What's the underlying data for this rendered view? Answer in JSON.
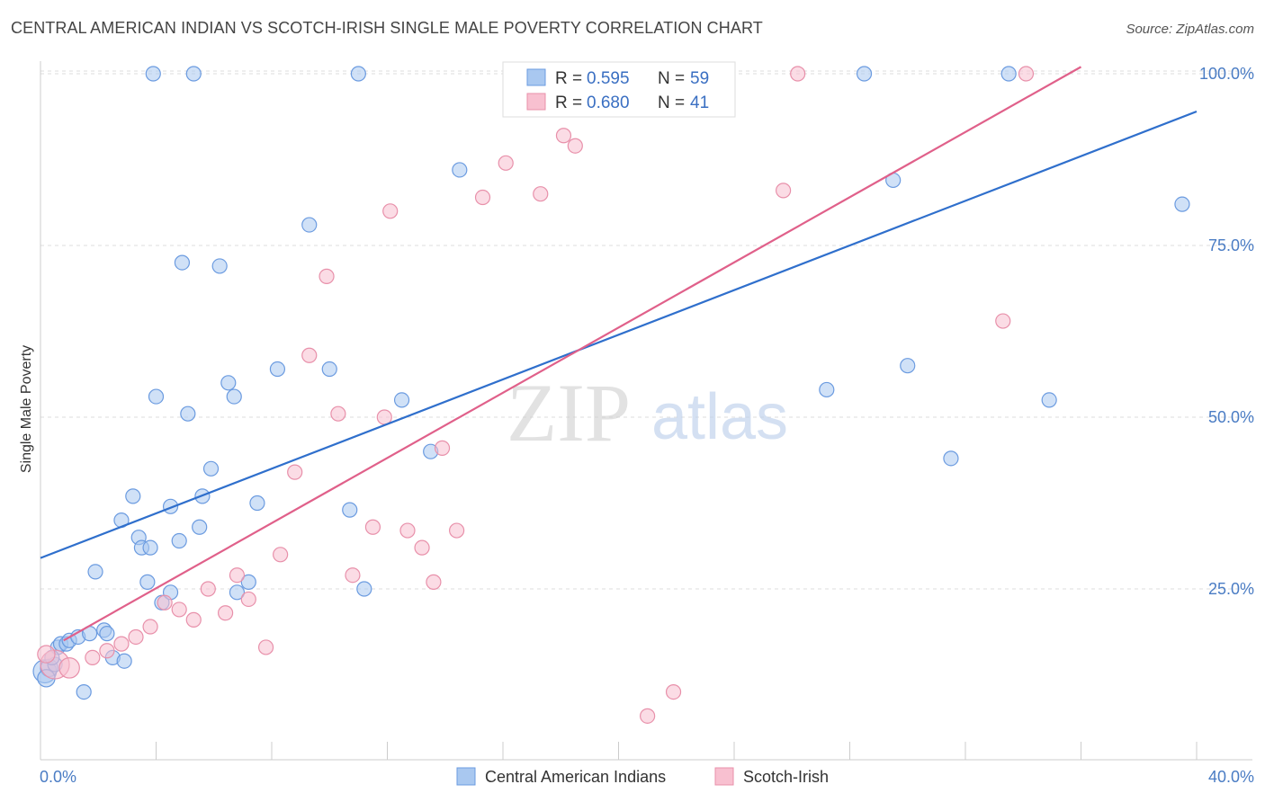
{
  "title": "CENTRAL AMERICAN INDIAN VS SCOTCH-IRISH SINGLE MALE POVERTY CORRELATION CHART",
  "source": "Source: ZipAtlas.com",
  "watermark": {
    "zip": "ZIP",
    "atlas": "atlas"
  },
  "chart_data": {
    "type": "scatter",
    "ylabel": "Single Male Poverty",
    "xlim": [
      0,
      40
    ],
    "ylim": [
      0,
      105
    ],
    "x_tick_labels": {
      "min": "0.0%",
      "max": "40.0%"
    },
    "y_ticks": [
      {
        "value": 25,
        "label": "25.0%"
      },
      {
        "value": 50,
        "label": "50.0%"
      },
      {
        "value": 75,
        "label": "75.0%"
      },
      {
        "value": 100,
        "label": "100.0%"
      }
    ],
    "grid": true,
    "legend": {
      "position": "top-center",
      "entries": [
        {
          "r_label": "R = ",
          "r_value": "0.595",
          "n_label": "N = ",
          "n_value": "59"
        },
        {
          "r_label": "R = ",
          "r_value": "0.680",
          "n_label": "N = ",
          "n_value": "41"
        }
      ]
    },
    "series": [
      {
        "name": "Central American Indians",
        "color": "#a9c8f0",
        "stroke": "#6b9be0",
        "line_color": "#2f6fcc",
        "trend": {
          "x0": 0,
          "y0": 29.5,
          "x1": 40,
          "y1": 94.5
        },
        "points": [
          [
            0.15,
            13.0,
            16
          ],
          [
            0.3,
            13.5,
            12
          ],
          [
            0.5,
            14.0,
            10
          ],
          [
            0.6,
            16.5,
            10
          ],
          [
            0.7,
            17.0,
            10
          ],
          [
            0.9,
            17.0,
            10
          ],
          [
            1.0,
            17.5,
            10
          ],
          [
            1.3,
            18.0,
            10
          ],
          [
            1.7,
            18.5,
            10
          ],
          [
            2.2,
            19.0,
            10
          ],
          [
            2.3,
            18.5,
            10
          ],
          [
            1.5,
            10.0,
            10
          ],
          [
            1.9,
            27.5,
            10
          ],
          [
            2.5,
            15.0,
            10
          ],
          [
            2.9,
            14.5,
            10
          ],
          [
            2.8,
            35.0,
            10
          ],
          [
            3.2,
            38.5,
            10
          ],
          [
            3.4,
            32.5,
            10
          ],
          [
            3.5,
            31.0,
            10
          ],
          [
            3.7,
            26.0,
            10
          ],
          [
            3.8,
            31.0,
            10
          ],
          [
            4.2,
            23.0,
            10
          ],
          [
            4.5,
            24.5,
            10
          ],
          [
            4.5,
            37.0,
            10
          ],
          [
            4.8,
            32.0,
            10
          ],
          [
            4.0,
            53.0,
            10
          ],
          [
            5.1,
            50.5,
            10
          ],
          [
            5.5,
            34.0,
            10
          ],
          [
            5.6,
            38.5,
            10
          ],
          [
            5.9,
            42.5,
            10
          ],
          [
            6.5,
            55.0,
            10
          ],
          [
            6.7,
            53.0,
            10
          ],
          [
            6.8,
            24.5,
            10
          ],
          [
            7.2,
            26.0,
            10
          ],
          [
            7.5,
            37.5,
            10
          ],
          [
            4.9,
            72.5,
            10
          ],
          [
            6.2,
            72.0,
            10
          ],
          [
            8.2,
            57.0,
            10
          ],
          [
            9.3,
            78.0,
            10
          ],
          [
            10.0,
            57.0,
            10
          ],
          [
            10.7,
            36.5,
            10
          ],
          [
            11.2,
            25.0,
            10
          ],
          [
            12.5,
            52.5,
            10
          ],
          [
            13.5,
            45.0,
            10
          ],
          [
            14.5,
            86.0,
            10
          ],
          [
            3.9,
            100.0,
            10
          ],
          [
            5.3,
            100.0,
            10
          ],
          [
            11.0,
            100.0,
            10
          ],
          [
            19.2,
            100.0,
            10
          ],
          [
            28.5,
            100.0,
            10
          ],
          [
            33.5,
            100.0,
            10
          ],
          [
            29.5,
            84.5,
            10
          ],
          [
            30.0,
            57.5,
            10
          ],
          [
            27.2,
            54.0,
            10
          ],
          [
            31.5,
            44.0,
            10
          ],
          [
            34.9,
            52.5,
            10
          ],
          [
            39.5,
            81.0,
            10
          ],
          [
            0.2,
            12.0,
            12
          ],
          [
            0.4,
            15.0,
            10
          ]
        ]
      },
      {
        "name": "Scotch-Irish",
        "color": "#f8c0d0",
        "stroke": "#e890aa",
        "line_color": "#e0608a",
        "trend": {
          "x0": 0.8,
          "y0": 17.5,
          "x1": 36.0,
          "y1": 101.0
        },
        "points": [
          [
            0.5,
            14.0,
            20
          ],
          [
            1.0,
            13.5,
            14
          ],
          [
            1.8,
            15.0,
            10
          ],
          [
            2.3,
            16.0,
            10
          ],
          [
            2.8,
            17.0,
            10
          ],
          [
            3.3,
            18.0,
            10
          ],
          [
            3.8,
            19.5,
            10
          ],
          [
            4.3,
            23.0,
            10
          ],
          [
            4.8,
            22.0,
            10
          ],
          [
            5.3,
            20.5,
            10
          ],
          [
            5.8,
            25.0,
            10
          ],
          [
            6.4,
            21.5,
            10
          ],
          [
            6.8,
            27.0,
            10
          ],
          [
            7.2,
            23.5,
            10
          ],
          [
            7.8,
            16.5,
            10
          ],
          [
            8.3,
            30.0,
            10
          ],
          [
            8.8,
            42.0,
            10
          ],
          [
            9.3,
            59.0,
            10
          ],
          [
            9.9,
            70.5,
            10
          ],
          [
            10.3,
            50.5,
            10
          ],
          [
            10.8,
            27.0,
            10
          ],
          [
            11.5,
            34.0,
            10
          ],
          [
            11.9,
            50.0,
            10
          ],
          [
            12.1,
            80.0,
            10
          ],
          [
            12.7,
            33.5,
            10
          ],
          [
            13.2,
            31.0,
            10
          ],
          [
            13.6,
            26.0,
            10
          ],
          [
            13.9,
            45.5,
            10
          ],
          [
            14.4,
            33.5,
            10
          ],
          [
            15.3,
            82.0,
            10
          ],
          [
            16.1,
            87.0,
            10
          ],
          [
            17.3,
            82.5,
            10
          ],
          [
            18.1,
            91.0,
            10
          ],
          [
            18.5,
            89.5,
            10
          ],
          [
            21.0,
            6.5,
            10
          ],
          [
            21.9,
            10.0,
            10
          ],
          [
            25.7,
            83.0,
            10
          ],
          [
            26.2,
            100.0,
            10
          ],
          [
            33.3,
            64.0,
            10
          ],
          [
            34.1,
            100.0,
            10
          ],
          [
            0.2,
            15.5,
            12
          ]
        ]
      }
    ]
  }
}
